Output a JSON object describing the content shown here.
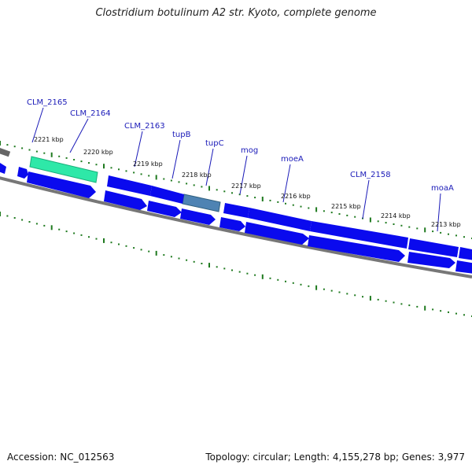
{
  "title": "Clostridium botulinum A2 str. Kyoto, complete genome",
  "accession": "Accession: NC_012563",
  "summary": "Topology: circular; Length: 4,155,278 bp; Genes: 3,977",
  "colors": {
    "cds": "#0a0aee",
    "highlight_green": "#2ee8a8",
    "highlight_steel": "#4e83b3",
    "backbone": "#707070",
    "tick": "#1f7a1f",
    "label": "#1a1ab8"
  },
  "kbp_ticks": [
    "2221 kbp",
    "2220 kbp",
    "2219 kbp",
    "2218 kbp",
    "2217 kbp",
    "2216 kbp",
    "2215 kbp",
    "2214 kbp",
    "2213 kbp"
  ],
  "genes": [
    {
      "name": "CLM_2165"
    },
    {
      "name": "CLM_2164"
    },
    {
      "name": "CLM_2163"
    },
    {
      "name": "tupB"
    },
    {
      "name": "tupC"
    },
    {
      "name": "mog"
    },
    {
      "name": "moeA"
    },
    {
      "name": "CLM_2158"
    },
    {
      "name": "moaA"
    }
  ]
}
